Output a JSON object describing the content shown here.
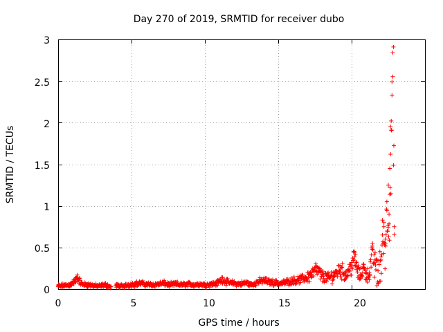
{
  "chart_data": {
    "type": "scatter",
    "title": "Day 270 of 2019, SRMTID for receiver dubo",
    "xlabel": "GPS time / hours",
    "ylabel": "SRMTID / TECUs",
    "xlim": [
      0,
      25
    ],
    "ylim": [
      0,
      3
    ],
    "xticks": [
      "0",
      "5",
      "10",
      "15",
      "20"
    ],
    "yticks": [
      "0",
      "0.5",
      "1",
      "1.5",
      "2",
      "2.5",
      "3"
    ],
    "grid": true,
    "marker": "plus",
    "marker_color": "#ff0000",
    "series": [
      {
        "name": "SRMTID",
        "x": [
          0.0,
          0.4,
          0.8,
          1.2,
          1.3,
          1.6,
          2.0,
          2.4,
          2.8,
          3.2,
          3.6,
          4.0,
          4.4,
          4.8,
          5.2,
          5.6,
          6.0,
          6.4,
          6.8,
          7.2,
          7.6,
          8.0,
          8.4,
          8.8,
          9.2,
          9.6,
          10.0,
          10.4,
          10.8,
          11.2,
          11.6,
          12.0,
          12.4,
          12.8,
          13.2,
          13.6,
          14.0,
          14.4,
          14.8,
          15.2,
          15.6,
          16.0,
          16.4,
          16.8,
          17.2,
          17.6,
          18.0,
          18.4,
          18.8,
          19.2,
          19.6,
          20.0,
          20.2,
          20.4,
          20.6,
          20.8,
          21.0,
          21.2,
          21.4,
          21.6,
          21.8,
          22.0,
          22.1,
          22.2,
          22.3,
          22.4,
          22.5,
          22.55,
          22.6,
          22.65,
          22.7,
          22.75,
          22.8,
          22.85,
          22.9
        ],
        "y": [
          0.04,
          0.05,
          0.06,
          0.12,
          0.17,
          0.07,
          0.06,
          0.05,
          0.04,
          0.06,
          0.03,
          0.05,
          0.04,
          0.06,
          0.07,
          0.08,
          0.07,
          0.06,
          0.07,
          0.08,
          0.06,
          0.07,
          0.06,
          0.07,
          0.06,
          0.07,
          0.06,
          0.07,
          0.08,
          0.14,
          0.09,
          0.08,
          0.07,
          0.09,
          0.06,
          0.1,
          0.12,
          0.1,
          0.09,
          0.08,
          0.1,
          0.12,
          0.13,
          0.15,
          0.2,
          0.27,
          0.18,
          0.15,
          0.2,
          0.28,
          0.2,
          0.32,
          0.44,
          0.25,
          0.18,
          0.3,
          0.2,
          0.2,
          0.48,
          0.35,
          0.22,
          0.35,
          0.65,
          0.8,
          0.55,
          1.05,
          1.25,
          0.9,
          1.45,
          1.62,
          2.02,
          2.49,
          2.84,
          2.91,
          0.75
        ]
      }
    ]
  }
}
